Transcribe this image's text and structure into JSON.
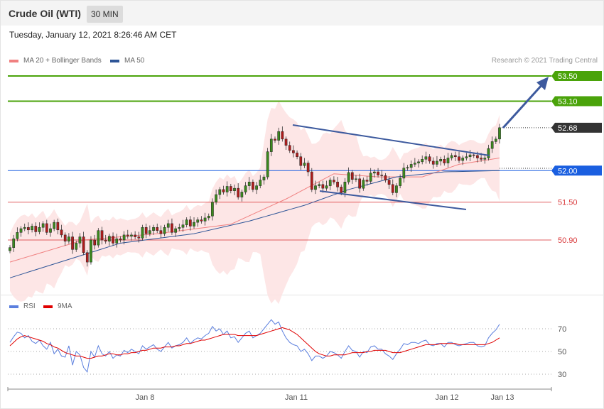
{
  "header": {
    "title": "Crude Oil (WTI)",
    "timeframe": "30 MIN"
  },
  "datetime": "Tuesday, January 12, 2021 8:26:46 AM CET",
  "legend": {
    "bollinger": {
      "label": "MA 20 + Bollinger Bands",
      "color": "#f08080"
    },
    "ma50": {
      "label": "MA 50",
      "color": "#2e5597"
    },
    "rsi": {
      "label": "RSI",
      "color": "#5b7fde"
    },
    "rsi_ma": {
      "label": "9MA",
      "color": "#e00000"
    }
  },
  "credit": "Research © 2021 Trading Central",
  "chart_data": [
    {
      "type": "candlestick",
      "title": "Crude Oil (WTI)",
      "timeframe": "30 MIN",
      "x_ticks": [
        "Jan 8",
        "Jan 11",
        "Jan 12",
        "Jan 13"
      ],
      "ylim": [
        50.25,
        53.6
      ],
      "levels": [
        {
          "label": "53.50",
          "value": 53.5,
          "kind": "resistance",
          "color": "#4aa30a"
        },
        {
          "label": "53.10",
          "value": 53.1,
          "kind": "resistance",
          "color": "#4aa30a"
        },
        {
          "label": "52.68",
          "value": 52.68,
          "kind": "last-price",
          "color": "#333333"
        },
        {
          "label": "52.00",
          "value": 52.0,
          "kind": "pivot",
          "color": "#1a5fe0"
        },
        {
          "label": "51.50",
          "value": 51.5,
          "kind": "support",
          "color": "#d9383a"
        },
        {
          "label": "50.90",
          "value": 50.9,
          "kind": "support",
          "color": "#d9383a"
        }
      ],
      "closes": [
        50.78,
        50.92,
        51.02,
        51.08,
        51.1,
        51.06,
        51.12,
        51.03,
        51.1,
        51.16,
        51.02,
        51.08,
        51.18,
        51.06,
        50.98,
        50.88,
        50.95,
        50.75,
        50.85,
        50.95,
        50.7,
        50.55,
        50.9,
        50.82,
        51.05,
        50.9,
        50.88,
        50.96,
        50.85,
        50.92,
        50.9,
        50.98,
        50.96,
        50.98,
        50.95,
        50.93,
        51.1,
        51.0,
        51.05,
        51.1,
        51.05,
        51.0,
        51.1,
        51.16,
        51.02,
        51.08,
        51.1,
        51.14,
        51.22,
        51.12,
        51.18,
        51.22,
        51.2,
        51.25,
        51.28,
        51.5,
        51.62,
        51.7,
        51.66,
        51.75,
        51.68,
        51.72,
        51.58,
        51.66,
        51.76,
        51.82,
        51.7,
        51.76,
        51.85,
        51.9,
        52.3,
        52.5,
        52.48,
        52.62,
        52.5,
        52.4,
        52.32,
        52.28,
        52.22,
        52.08,
        52.12,
        51.98,
        51.7,
        51.76,
        51.78,
        51.72,
        51.76,
        51.85,
        51.82,
        51.74,
        51.65,
        51.82,
        51.97,
        51.86,
        51.87,
        51.72,
        51.85,
        51.83,
        51.96,
        51.98,
        51.93,
        51.92,
        51.85,
        51.78,
        51.65,
        51.76,
        51.88,
        52.04,
        52.05,
        52.1,
        52.12,
        52.14,
        52.18,
        52.22,
        52.15,
        52.1,
        52.15,
        52.18,
        52.12,
        52.2,
        52.24,
        52.22,
        52.16,
        52.2,
        52.22,
        52.25,
        52.24,
        52.2,
        52.18,
        52.2,
        52.35,
        52.46,
        52.5,
        52.68
      ],
      "ma20": {
        "start": 50.55,
        "points": [
          [
            0,
            50.55
          ],
          [
            20,
            50.9
          ],
          [
            40,
            51.0
          ],
          [
            60,
            51.15
          ],
          [
            75,
            51.55
          ],
          [
            88,
            51.95
          ],
          [
            100,
            51.9
          ],
          [
            112,
            51.9
          ],
          [
            122,
            52.1
          ],
          [
            133,
            52.2
          ]
        ]
      },
      "ma50": {
        "start": 50.3,
        "points": [
          [
            0,
            50.3
          ],
          [
            30,
            50.85
          ],
          [
            50,
            51.0
          ],
          [
            65,
            51.2
          ],
          [
            80,
            51.45
          ],
          [
            92,
            51.7
          ],
          [
            105,
            51.9
          ],
          [
            118,
            51.98
          ],
          [
            133,
            52.0
          ]
        ]
      },
      "channel": {
        "upper": [
          52.66,
          52.2
        ],
        "lower": [
          51.75,
          51.4
        ]
      },
      "forecast_arrow": {
        "from": 52.68,
        "to": 53.5
      }
    },
    {
      "type": "line",
      "title": "RSI",
      "y_ticks": [
        "70",
        "50",
        "30"
      ],
      "ylim": [
        25,
        77
      ],
      "series": [
        {
          "name": "RSI",
          "color": "#5b7fde",
          "values": [
            58,
            63,
            67,
            66,
            62,
            64,
            59,
            57,
            60,
            55,
            52,
            58,
            48,
            52,
            46,
            45,
            55,
            38,
            50,
            47,
            36,
            32,
            50,
            45,
            55,
            48,
            46,
            50,
            44,
            47,
            46,
            51,
            49,
            52,
            50,
            48,
            55,
            52,
            54,
            56,
            52,
            50,
            54,
            58,
            53,
            55,
            56,
            58,
            62,
            57,
            60,
            62,
            61,
            64,
            66,
            72,
            68,
            70,
            65,
            68,
            62,
            63,
            58,
            62,
            66,
            68,
            62,
            64,
            66,
            70,
            74,
            78,
            74,
            76,
            68,
            62,
            58,
            56,
            55,
            50,
            52,
            48,
            42,
            46,
            46,
            44,
            46,
            50,
            49,
            47,
            44,
            50,
            55,
            51,
            50,
            45,
            50,
            49,
            54,
            55,
            52,
            52,
            48,
            46,
            43,
            48,
            52,
            57,
            56,
            58,
            58,
            57,
            59,
            60,
            56,
            55,
            57,
            57,
            54,
            58,
            58,
            56,
            55,
            56,
            57,
            58,
            58,
            55,
            54,
            55,
            62,
            66,
            69,
            74
          ]
        },
        {
          "name": "9MA",
          "color": "#e00000",
          "values": [
            55,
            58,
            61,
            63,
            64,
            63,
            62,
            61,
            60,
            59,
            57,
            56,
            54,
            53,
            51,
            49,
            48,
            47,
            46,
            46,
            45,
            44,
            44,
            45,
            46,
            46,
            47,
            48,
            48,
            47,
            47,
            48,
            48,
            49,
            49,
            50,
            51,
            51,
            52,
            53,
            53,
            53,
            54,
            54,
            54,
            55,
            55,
            56,
            57,
            57,
            58,
            59,
            60,
            60,
            61,
            62,
            63,
            64,
            65,
            65,
            65,
            65,
            64,
            64,
            64,
            64,
            64,
            64,
            65,
            66,
            67,
            68,
            69,
            70,
            71,
            70,
            69,
            67,
            65,
            62,
            59,
            56,
            53,
            50,
            48,
            47,
            46,
            46,
            47,
            47,
            47,
            47,
            48,
            49,
            49,
            49,
            49,
            50,
            50,
            51,
            51,
            51,
            51,
            50,
            49,
            49,
            49,
            50,
            51,
            52,
            53,
            54,
            55,
            56,
            56,
            56,
            56,
            57,
            57,
            57,
            57,
            57,
            56,
            56,
            56,
            56,
            56,
            56,
            56,
            56,
            57,
            58,
            60,
            62
          ]
        }
      ]
    }
  ]
}
